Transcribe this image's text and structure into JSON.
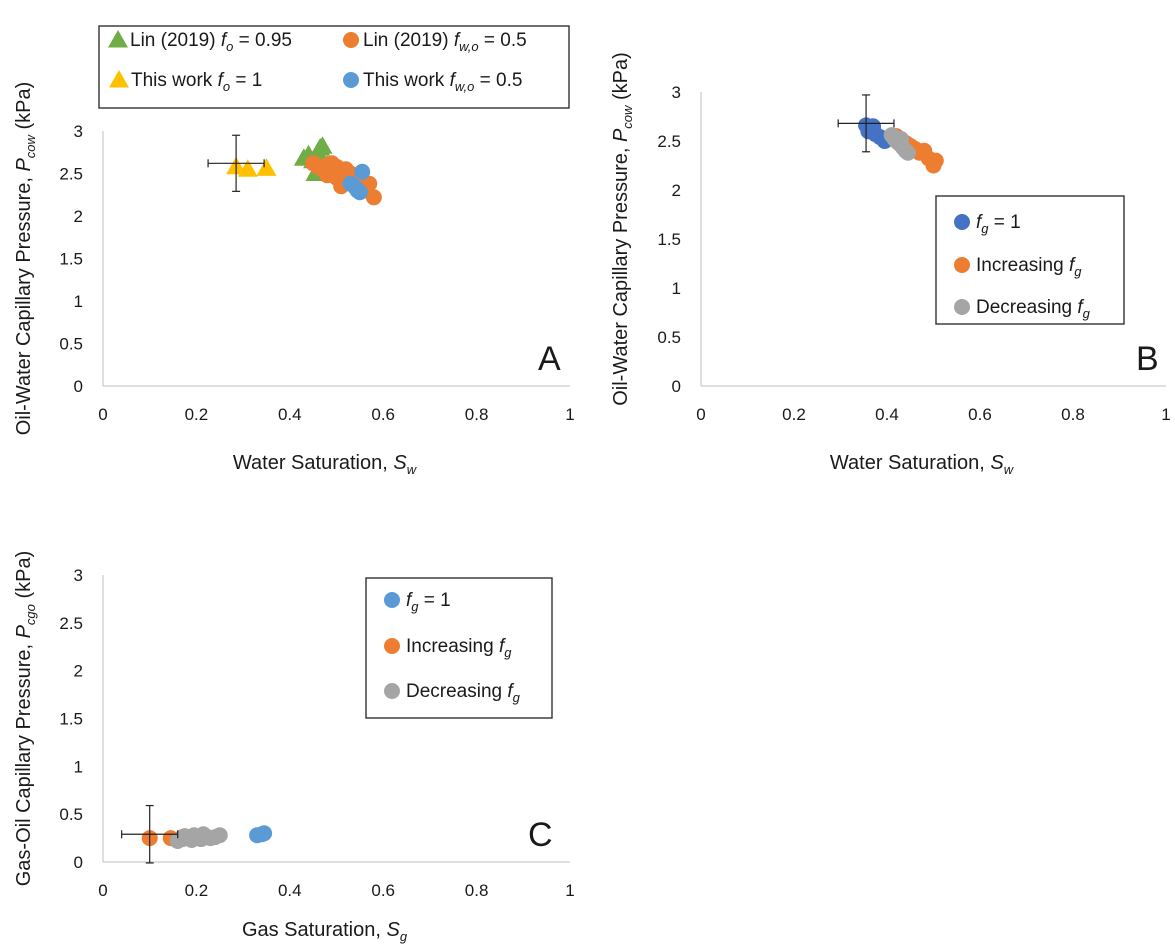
{
  "colors": {
    "green": "#70ad47",
    "yellow": "#ffc000",
    "orange": "#ed7d31",
    "light_blue": "#5b9bd5",
    "dark_blue": "#4472c4",
    "gray": "#a5a5a5"
  },
  "chart_data": [
    {
      "type": "scatter",
      "panel_label": "A",
      "xlabel": {
        "text": "Water Saturation, ",
        "sym": "S",
        "sub": "w"
      },
      "ylabel": {
        "text": "Oil-Water Capillary Pressure, ",
        "sym": "P",
        "sub": "cow",
        "unit": " (kPa)"
      },
      "xlim": [
        0,
        1
      ],
      "ylim": [
        0,
        3
      ],
      "xticks": [
        "0",
        "0.2",
        "0.4",
        "0.6",
        "0.8",
        "1"
      ],
      "yticks": [
        "0",
        "0.5",
        "1",
        "1.5",
        "2",
        "2.5",
        "3"
      ],
      "grid": false,
      "legend_position": "top",
      "series": [
        {
          "name": "Lin (2019)",
          "param": {
            "sym": "f",
            "sub": "o",
            "val": " = 0.95"
          },
          "marker": "triangle",
          "color": "#70ad47",
          "x": [
            0.43,
            0.44,
            0.45,
            0.46,
            0.465,
            0.47,
            0.455,
            0.48,
            0.46
          ],
          "y": [
            2.68,
            2.72,
            2.65,
            2.75,
            2.8,
            2.82,
            2.5,
            2.6,
            2.55
          ]
        },
        {
          "name": "Lin (2019)",
          "param": {
            "sym": "f",
            "sub": "w,o",
            "val": " = 0.5"
          },
          "marker": "circle",
          "color": "#ed7d31",
          "x": [
            0.45,
            0.47,
            0.48,
            0.49,
            0.5,
            0.51,
            0.52,
            0.53,
            0.54,
            0.55,
            0.56,
            0.57,
            0.58,
            0.5,
            0.48,
            0.52,
            0.46,
            0.49,
            0.53,
            0.51
          ],
          "y": [
            2.62,
            2.55,
            2.6,
            2.52,
            2.58,
            2.5,
            2.55,
            2.45,
            2.4,
            2.35,
            2.3,
            2.38,
            2.22,
            2.45,
            2.48,
            2.42,
            2.58,
            2.62,
            2.5,
            2.35
          ]
        },
        {
          "name": "This work",
          "param": {
            "sym": "f",
            "sub": "o",
            "val": " = 1"
          },
          "marker": "triangle",
          "color": "#ffc000",
          "x": [
            0.285,
            0.31,
            0.35
          ],
          "y": [
            2.58,
            2.55,
            2.56
          ]
        },
        {
          "name": "This work",
          "param": {
            "sym": "f",
            "sub": "w,o",
            "val": " = 0.5"
          },
          "marker": "circle",
          "color": "#5b9bd5",
          "x": [
            0.53,
            0.54,
            0.545,
            0.55,
            0.555
          ],
          "y": [
            2.38,
            2.34,
            2.3,
            2.28,
            2.52
          ]
        }
      ],
      "error_bar": {
        "x": 0.285,
        "y": 2.62,
        "xerr": 0.06,
        "yerr": 0.33
      }
    },
    {
      "type": "scatter",
      "panel_label": "B",
      "xlabel": {
        "text": "Water Saturation, ",
        "sym": "S",
        "sub": "w"
      },
      "ylabel": {
        "text": "Oil-Water Capillary Pressure, ",
        "sym": "P",
        "sub": "cow",
        "unit": " (kPa)"
      },
      "xlim": [
        0,
        1
      ],
      "ylim": [
        0,
        3
      ],
      "xticks": [
        "0",
        "0.2",
        "0.4",
        "0.6",
        "0.8",
        "1"
      ],
      "yticks": [
        "0",
        "0.5",
        "1",
        "1.5",
        "2",
        "2.5",
        "3"
      ],
      "grid": false,
      "legend_position": "right",
      "series": [
        {
          "name": "",
          "param": {
            "sym": "f",
            "sub": "g",
            "val": " = 1"
          },
          "marker": "circle",
          "color": "#4472c4",
          "x": [
            0.355,
            0.365,
            0.375,
            0.385,
            0.395,
            0.36,
            0.37
          ],
          "y": [
            2.66,
            2.62,
            2.57,
            2.54,
            2.5,
            2.6,
            2.65
          ]
        },
        {
          "name": "Increasing",
          "param": {
            "sym": "f",
            "sub": "g",
            "val": ""
          },
          "marker": "circle",
          "color": "#ed7d31",
          "x": [
            0.42,
            0.44,
            0.46,
            0.47,
            0.48,
            0.49,
            0.5,
            0.505,
            0.45,
            0.43
          ],
          "y": [
            2.55,
            2.48,
            2.42,
            2.38,
            2.4,
            2.32,
            2.25,
            2.3,
            2.45,
            2.52
          ]
        },
        {
          "name": "Decreasing",
          "param": {
            "sym": "f",
            "sub": "g",
            "val": ""
          },
          "marker": "circle",
          "color": "#a5a5a5",
          "x": [
            0.41,
            0.415,
            0.42,
            0.425,
            0.43,
            0.435,
            0.44,
            0.445,
            0.43
          ],
          "y": [
            2.56,
            2.53,
            2.5,
            2.48,
            2.46,
            2.43,
            2.4,
            2.38,
            2.52
          ]
        }
      ],
      "error_bar": {
        "x": 0.355,
        "y": 2.68,
        "xerr": 0.06,
        "yerr": 0.29
      }
    },
    {
      "type": "scatter",
      "panel_label": "C",
      "xlabel": {
        "text": "Gas Saturation, ",
        "sym": "S",
        "sub": "g"
      },
      "ylabel": {
        "text": "Gas-Oil Capillary Pressure, ",
        "sym": "P",
        "sub": "cgo",
        "unit": " (kPa)"
      },
      "xlim": [
        0,
        1
      ],
      "ylim": [
        0,
        3
      ],
      "xticks": [
        "0",
        "0.2",
        "0.4",
        "0.6",
        "0.8",
        "1"
      ],
      "yticks": [
        "0",
        "0.5",
        "1",
        "1.5",
        "2",
        "2.5",
        "3"
      ],
      "grid": false,
      "legend_position": "top-center",
      "series": [
        {
          "name": "",
          "param": {
            "sym": "f",
            "sub": "g",
            "val": " = 1"
          },
          "marker": "circle",
          "color": "#5b9bd5",
          "x": [
            0.33,
            0.34,
            0.345
          ],
          "y": [
            0.28,
            0.29,
            0.3
          ]
        },
        {
          "name": "Increasing",
          "param": {
            "sym": "f",
            "sub": "g",
            "val": ""
          },
          "marker": "circle",
          "color": "#ed7d31",
          "x": [
            0.1,
            0.145,
            0.17
          ],
          "y": [
            0.25,
            0.25,
            0.26
          ]
        },
        {
          "name": "Decreasing",
          "param": {
            "sym": "f",
            "sub": "g",
            "val": ""
          },
          "marker": "circle",
          "color": "#a5a5a5",
          "x": [
            0.16,
            0.17,
            0.18,
            0.19,
            0.2,
            0.21,
            0.22,
            0.23,
            0.24,
            0.25,
            0.175,
            0.195,
            0.215
          ],
          "y": [
            0.22,
            0.24,
            0.25,
            0.23,
            0.26,
            0.24,
            0.27,
            0.25,
            0.26,
            0.28,
            0.27,
            0.28,
            0.29
          ]
        }
      ],
      "error_bar": {
        "x": 0.1,
        "y": 0.29,
        "xerr": 0.06,
        "yerr": 0.3
      }
    }
  ]
}
